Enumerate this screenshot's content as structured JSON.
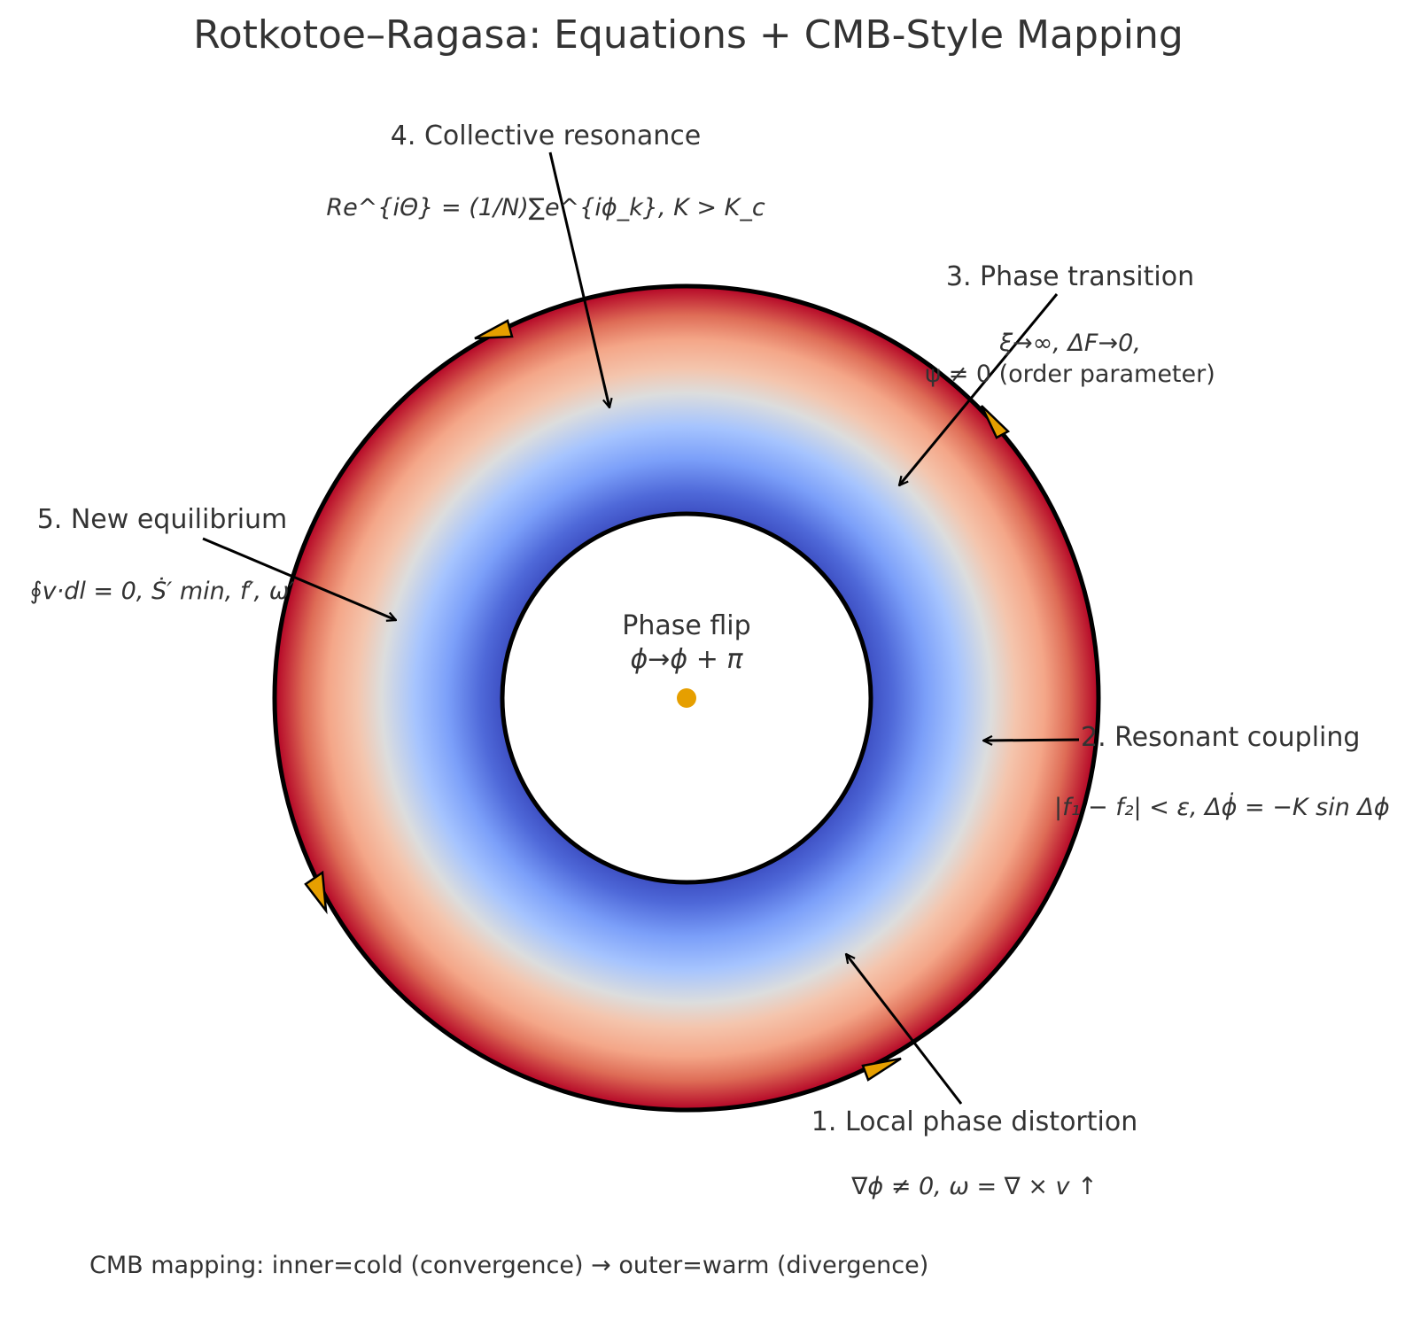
{
  "title": "Rotkotoe–Ragasa: Equations + CMB-Style Mapping",
  "center": {
    "label": "Phase flip",
    "equation": "ϕ→ϕ + π"
  },
  "stages": [
    {
      "label": "1. Local phase distortion",
      "equation": "∇ϕ ≠ 0,  ω = ∇ × v ↑"
    },
    {
      "label": "2. Resonant coupling",
      "equation": "|f₁ − f₂| < ε,  Δϕ̇ = −K sin Δϕ"
    },
    {
      "label": "3. Phase transition",
      "equation": "ξ→∞,  ΔF→0,",
      "equation_line2": "ψ ≠ 0 (order parameter)"
    },
    {
      "label": "4. Collective resonance",
      "equation": "Re^{iΘ} = (1/N)∑e^{iϕ_k},  K > K_c"
    },
    {
      "label": "5. New equilibrium",
      "equation": "∮v·dl = 0,  Ṡ′ min,  f′,  ω′"
    }
  ],
  "footer_note": "CMB mapping: inner=cold (convergence) → outer=warm (divergence)",
  "colors": {
    "cold": "#3b4cc0",
    "cold_light": "#a6c4fe",
    "neutral": "#dcdddd",
    "warm_light": "#f4b296",
    "warm": "#b40426",
    "marker": "#e69f00",
    "outline": "#000000",
    "text": "#333333"
  }
}
